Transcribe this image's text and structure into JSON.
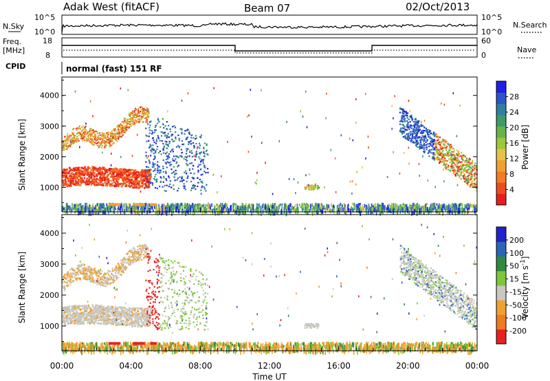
{
  "header": {
    "title": "Adak West (fitACF)",
    "beam": "Beam 07",
    "date": "02/Oct/2013"
  },
  "strip": {
    "nsky_label": "N.Sky",
    "nsky_ticks": [
      "10^5",
      "10^0"
    ],
    "nsearch_label": "N.Search",
    "nsearch_ticks": [
      "10^5",
      "10^0"
    ],
    "freq_label_1": "Freq.",
    "freq_label_2": "[MHz]",
    "freq_ticks": [
      "18",
      "8"
    ],
    "nave_label": "Nave",
    "nave_ticks": [
      "60",
      "0"
    ],
    "cpid_label": "CPID",
    "cpid_text": "normal (fast) 151 RF"
  },
  "chart_data": [
    {
      "type": "heatmap",
      "name": "power-panel",
      "ylabel": "Slant Range [km]",
      "yticks": [
        "4000",
        "3000",
        "2000",
        "1000"
      ],
      "ylim": [
        200,
        4600
      ],
      "xlim": [
        0,
        24
      ],
      "colorbar": {
        "label": "Power [dB]",
        "ticks": [
          "28",
          "24",
          "20",
          "16",
          "12",
          "8",
          "4"
        ],
        "range": [
          0,
          32
        ],
        "colors": [
          "#1f1fe6",
          "#2b55c8",
          "#2f7fa0",
          "#3e9a66",
          "#63b54a",
          "#9dc83a",
          "#e6c24a",
          "#f0a030",
          "#f57a22",
          "#f04a20",
          "#e81e1e"
        ]
      }
    },
    {
      "type": "heatmap",
      "name": "velocity-panel",
      "ylabel": "Slant Range [km]",
      "yticks": [
        "4000",
        "3000",
        "2000",
        "1000"
      ],
      "ylim": [
        200,
        4600
      ],
      "xlim": [
        0,
        24
      ],
      "xticks": [
        "00:00",
        "04:00",
        "08:00",
        "12:00",
        "16:00",
        "20:00",
        "00:00"
      ],
      "xlabel": "Time UT",
      "colorbar": {
        "label": "Velocity [m s^-1]",
        "ticks": [
          "200",
          "100",
          "50",
          "15",
          "-15",
          "-50",
          "-100",
          "-200"
        ],
        "colors": [
          "#2222cc",
          "#2a66b8",
          "#2f8a3c",
          "#7ac83a",
          "#c8c8c0",
          "#f0a030",
          "#f07a20",
          "#e82020"
        ]
      }
    }
  ]
}
